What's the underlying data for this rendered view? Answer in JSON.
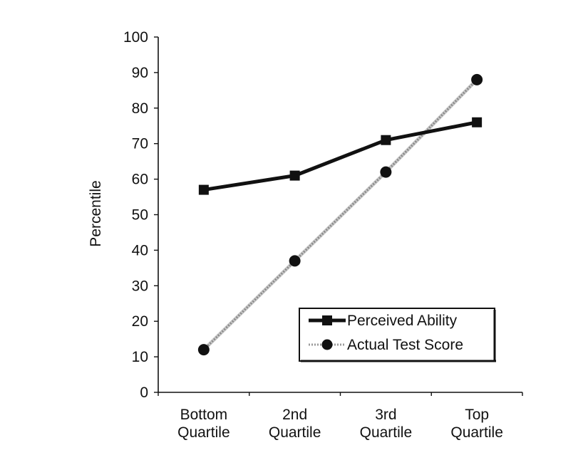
{
  "chart_data": {
    "type": "line",
    "title": "",
    "xlabel": "",
    "ylabel": "Percentile",
    "ylim": [
      0,
      100
    ],
    "yticks": [
      0,
      10,
      20,
      30,
      40,
      50,
      60,
      70,
      80,
      90,
      100
    ],
    "grid": false,
    "legend_position": "lower right (inside plot)",
    "categories": [
      "Bottom Quartile",
      "2nd Quartile",
      "3rd Quartile",
      "Top Quartile"
    ],
    "category_lines": [
      [
        "Bottom",
        "Quartile"
      ],
      [
        "2nd",
        "Quartile"
      ],
      [
        "3rd",
        "Quartile"
      ],
      [
        "Top",
        "Quartile"
      ]
    ],
    "series": [
      {
        "name": "Perceived Ability",
        "marker": "square",
        "line": "solid-black",
        "color": "#111111",
        "values": [
          57,
          61,
          71,
          76
        ]
      },
      {
        "name": "Actual Test Score",
        "marker": "circle",
        "line": "dotted-gray",
        "color": "#9a9a9a",
        "values": [
          12,
          37,
          62,
          88
        ]
      }
    ]
  }
}
